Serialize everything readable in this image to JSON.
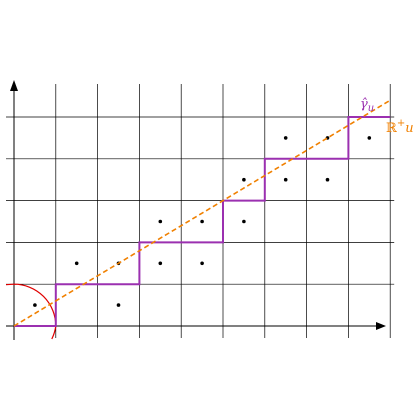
{
  "diagram": {
    "grid": {
      "x_min": 0,
      "x_max": 9,
      "y_min": 0,
      "y_max": 5,
      "step": 1
    },
    "colors": {
      "grid": "#000000",
      "axes": "#000000",
      "dots": "#000000",
      "staircase": "#9b30b0",
      "dashed_line": "#f08000",
      "arc": "#e00000"
    },
    "dots": [
      [
        0.5,
        0.5
      ],
      [
        1.5,
        1.5
      ],
      [
        2.5,
        1.5
      ],
      [
        2.5,
        0.5
      ],
      [
        3.5,
        2.5
      ],
      [
        3.5,
        1.5
      ],
      [
        4.5,
        2.5
      ],
      [
        4.5,
        1.5
      ],
      [
        5.5,
        3.5
      ],
      [
        5.5,
        2.5
      ],
      [
        6.5,
        4.5
      ],
      [
        6.5,
        3.5
      ],
      [
        7.5,
        4.5
      ],
      [
        7.5,
        3.5
      ],
      [
        8.5,
        4.5
      ]
    ],
    "staircase": [
      [
        0,
        0
      ],
      [
        1,
        0
      ],
      [
        1,
        1
      ],
      [
        3,
        1
      ],
      [
        3,
        2
      ],
      [
        5,
        2
      ],
      [
        5,
        3
      ],
      [
        6,
        3
      ],
      [
        6,
        4
      ],
      [
        8,
        4
      ],
      [
        8,
        5
      ],
      [
        9,
        5
      ]
    ],
    "dashed_line": {
      "from": [
        0,
        0
      ],
      "to": [
        9,
        5.4
      ]
    },
    "arc_radius": 1,
    "labels": {
      "gamma": {
        "base": "γ̂",
        "sub": "u"
      },
      "ray": {
        "set": "ℝ",
        "sup": "+",
        "var": "u"
      }
    }
  }
}
